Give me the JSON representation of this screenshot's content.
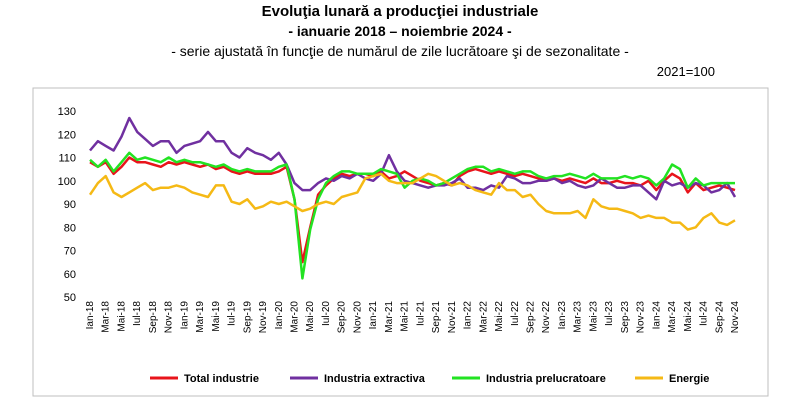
{
  "chart_data": {
    "type": "line",
    "title": "Evoluţia lunară a producţiei industriale",
    "subtitle": "- ianuarie 2018 – noiembrie 2024 -",
    "subtitle2": "- serie ajustată în funcţie de numărul de zile lucrătoare şi de sezonalitate -",
    "note": "2021=100",
    "categories": [
      "Ian-18",
      null,
      "Mar-18",
      null,
      "Mai-18",
      null,
      "Iul-18",
      null,
      "Sep-18",
      null,
      "Nov-18",
      null,
      "Ian-19",
      null,
      "Mar-19",
      null,
      "Mai-19",
      null,
      "Iul-19",
      null,
      "Sep-19",
      null,
      "Nov-19",
      null,
      "Ian-20",
      null,
      "Mar-20",
      null,
      "Mai-20",
      null,
      "Iul-20",
      null,
      "Sep-20",
      null,
      "Nov-20",
      null,
      "Ian-21",
      null,
      "Mar-21",
      null,
      "Mai-21",
      null,
      "Iul-21",
      null,
      "Sep-21",
      null,
      "Nov-21",
      null,
      "Ian-22",
      null,
      "Mar-22",
      null,
      "Mai-22",
      null,
      "Iul-22",
      null,
      "Sep-22",
      null,
      "Nov-22",
      null,
      "Ian-23",
      null,
      "Mar-23",
      null,
      "Mai-23",
      null,
      "Iul-23",
      null,
      "Sep-23",
      null,
      "Nov-23",
      null,
      "Ian-24",
      null,
      "Mar-24",
      null,
      "Mai-24",
      null,
      "Iul-24",
      null,
      "Sep-24",
      null,
      "Nov-24"
    ],
    "series": [
      {
        "name": "Total industrie",
        "color": "#e8141b",
        "values": [
          108,
          106,
          108,
          103,
          106,
          110,
          108,
          108,
          107,
          106,
          108,
          107,
          108,
          107,
          106,
          107,
          105,
          106,
          104,
          103,
          104,
          103,
          103,
          103,
          104,
          106,
          92,
          65,
          80,
          94,
          98,
          101,
          103,
          102,
          103,
          103,
          102,
          104,
          101,
          102,
          104,
          102,
          100,
          99,
          98,
          99,
          98,
          102,
          104,
          105,
          104,
          103,
          104,
          103,
          102,
          103,
          102,
          101,
          100,
          101,
          100,
          101,
          100,
          99,
          101,
          99,
          99,
          100,
          99,
          99,
          98,
          100,
          96,
          100,
          103,
          101,
          95,
          99,
          96,
          97,
          98,
          97,
          96
        ]
      },
      {
        "name": "Industria extractiva",
        "color": "#7030a0",
        "values": [
          113,
          117,
          115,
          113,
          119,
          127,
          121,
          118,
          115,
          117,
          117,
          112,
          115,
          116,
          117,
          121,
          117,
          117,
          112,
          110,
          114,
          112,
          111,
          109,
          112,
          107,
          99,
          96,
          96,
          99,
          101,
          100,
          102,
          101,
          103,
          101,
          100,
          103,
          111,
          104,
          100,
          99,
          98,
          97,
          98,
          98,
          99,
          101,
          97,
          97,
          96,
          98,
          97,
          102,
          101,
          99,
          99,
          100,
          100,
          101,
          99,
          100,
          98,
          97,
          98,
          101,
          99,
          97,
          97,
          98,
          98,
          95,
          92,
          100,
          98,
          99,
          97,
          99,
          98,
          95,
          96,
          99,
          93
        ]
      },
      {
        "name": "Industria prelucratoare",
        "color": "#22e322",
        "values": [
          109,
          106,
          109,
          104,
          108,
          112,
          109,
          110,
          109,
          108,
          110,
          108,
          109,
          108,
          108,
          107,
          106,
          107,
          105,
          104,
          105,
          104,
          104,
          104,
          106,
          107,
          92,
          58,
          79,
          92,
          99,
          102,
          104,
          104,
          103,
          103,
          103,
          105,
          104,
          103,
          97,
          100,
          101,
          100,
          98,
          99,
          101,
          103,
          105,
          106,
          106,
          104,
          105,
          104,
          103,
          104,
          104,
          102,
          101,
          102,
          102,
          103,
          102,
          101,
          103,
          101,
          101,
          101,
          102,
          101,
          102,
          101,
          98,
          101,
          107,
          105,
          97,
          101,
          98,
          99,
          99,
          99,
          99
        ]
      },
      {
        "name": "Energie",
        "color": "#f5b915",
        "values": [
          94,
          99,
          102,
          95,
          93,
          95,
          97,
          99,
          96,
          97,
          97,
          98,
          97,
          95,
          94,
          93,
          98,
          98,
          91,
          90,
          92,
          88,
          89,
          91,
          90,
          91,
          89,
          87,
          88,
          90,
          91,
          90,
          93,
          94,
          95,
          101,
          102,
          103,
          100,
          99,
          99,
          99,
          101,
          103,
          102,
          100,
          98,
          99,
          98,
          96,
          95,
          94,
          99,
          96,
          96,
          93,
          94,
          90,
          87,
          86,
          86,
          86,
          87,
          84,
          92,
          89,
          88,
          88,
          87,
          86,
          84,
          85,
          84,
          84,
          82,
          82,
          79,
          80,
          84,
          86,
          82,
          81,
          83
        ]
      }
    ],
    "ylim": [
      50,
      130
    ],
    "yticks": [
      50,
      60,
      70,
      80,
      90,
      100,
      110,
      120,
      130
    ],
    "grid": false,
    "legend": "bottom"
  }
}
